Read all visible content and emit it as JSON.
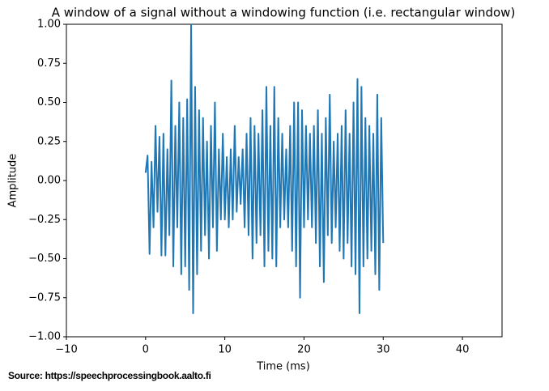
{
  "chart_data": {
    "type": "line",
    "title": "A window of a signal without a windowing function (i.e. rectangular window)",
    "x_label": "Time (ms)",
    "y_label": "Amplitude",
    "source": "Source: https://speechprocessingbook.aalto.fi",
    "xlim": [
      -10,
      45
    ],
    "xticks": [
      {
        "value": -10,
        "label": "−10"
      },
      0,
      10,
      20,
      30,
      40
    ],
    "ylim": [
      -1,
      1
    ],
    "yticks": [
      {
        "value": -1,
        "label": "−1.00"
      },
      {
        "value": -0.75,
        "label": "−0.75"
      },
      {
        "value": -0.5,
        "label": "−0.50"
      },
      {
        "value": -0.25,
        "label": "−0.25"
      },
      {
        "value": 0,
        "label": "0.00"
      },
      {
        "value": 0.25,
        "label": "0.25"
      },
      {
        "value": 0.5,
        "label": "0.50"
      },
      {
        "value": 0.75,
        "label": "0.75"
      },
      {
        "value": 1,
        "label": "1.00"
      }
    ],
    "color": "#1f77b4",
    "x": [
      0,
      0.25,
      0.5,
      0.75,
      1,
      1.25,
      1.5,
      1.75,
      2,
      2.25,
      2.5,
      2.75,
      3,
      3.25,
      3.5,
      3.75,
      4,
      4.25,
      4.5,
      4.75,
      5,
      5.25,
      5.5,
      5.75,
      6,
      6.25,
      6.5,
      6.75,
      7,
      7.25,
      7.5,
      7.75,
      8,
      8.25,
      8.5,
      8.75,
      9,
      9.25,
      9.5,
      9.75,
      10,
      10.25,
      10.5,
      10.75,
      11,
      11.25,
      11.5,
      11.75,
      12,
      12.25,
      12.5,
      12.75,
      13,
      13.25,
      13.5,
      13.75,
      14,
      14.25,
      14.5,
      14.75,
      15,
      15.25,
      15.5,
      15.75,
      16,
      16.25,
      16.5,
      16.75,
      17,
      17.25,
      17.5,
      17.75,
      18,
      18.25,
      18.5,
      18.75,
      19,
      19.25,
      19.5,
      19.75,
      20,
      20.25,
      20.5,
      20.75,
      21,
      21.25,
      21.5,
      21.75,
      22,
      22.25,
      22.5,
      22.75,
      23,
      23.25,
      23.5,
      23.75,
      24,
      24.25,
      24.5,
      24.75,
      25,
      25.25,
      25.5,
      25.75,
      26,
      26.25,
      26.5,
      26.75,
      27,
      27.25,
      27.5,
      27.75,
      28,
      28.25,
      28.5,
      28.75,
      29,
      29.25,
      29.5,
      29.75,
      30
    ],
    "values": [
      0.05,
      0.16,
      -0.47,
      0.12,
      -0.3,
      0.35,
      -0.2,
      0.28,
      -0.48,
      0.3,
      -0.48,
      0.2,
      -0.35,
      0.64,
      -0.55,
      0.35,
      -0.3,
      0.5,
      -0.6,
      0.4,
      -0.55,
      0.52,
      -0.7,
      1.0,
      -0.85,
      0.6,
      -0.6,
      0.45,
      -0.45,
      0.4,
      -0.35,
      0.25,
      -0.5,
      0.35,
      -0.3,
      0.5,
      -0.45,
      0.2,
      -0.25,
      0.3,
      -0.25,
      0.15,
      -0.3,
      0.2,
      -0.25,
      0.35,
      -0.2,
      0.15,
      -0.15,
      0.2,
      -0.3,
      0.3,
      -0.35,
      0.4,
      -0.5,
      0.35,
      -0.4,
      0.3,
      -0.35,
      0.45,
      -0.55,
      0.6,
      -0.45,
      0.35,
      -0.5,
      0.6,
      -0.55,
      0.4,
      -0.3,
      0.3,
      -0.25,
      0.2,
      -0.3,
      0.35,
      -0.45,
      0.5,
      -0.55,
      0.5,
      -0.75,
      0.45,
      -0.3,
      0.35,
      -0.25,
      0.3,
      -0.3,
      0.35,
      -0.4,
      0.45,
      -0.55,
      0.3,
      -0.65,
      0.4,
      -0.35,
      0.55,
      -0.4,
      0.25,
      -0.3,
      0.3,
      -0.45,
      0.35,
      -0.5,
      0.45,
      -0.4,
      0.3,
      -0.55,
      0.5,
      -0.6,
      0.65,
      -0.85,
      0.6,
      -0.55,
      0.4,
      -0.5,
      0.35,
      -0.45,
      0.3,
      -0.6,
      0.55,
      -0.7,
      0.4,
      -0.4
    ]
  }
}
